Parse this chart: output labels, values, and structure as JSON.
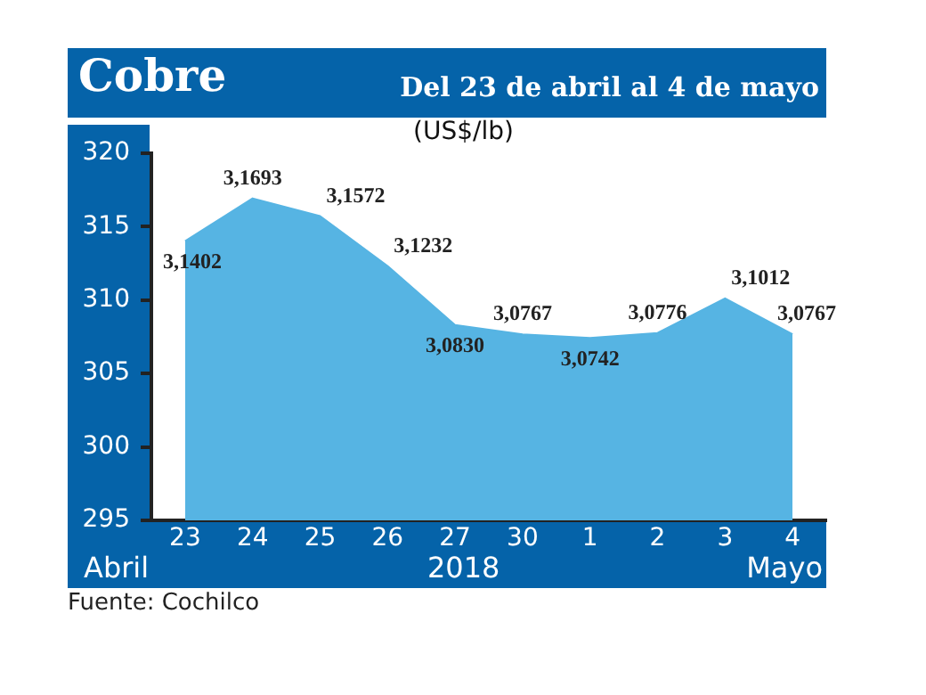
{
  "chart_data": {
    "type": "area",
    "title": "Cobre",
    "subtitle": "Del 23 de abril al 4 de mayo",
    "ylabel": "(US$/lb)",
    "categories": [
      "23",
      "24",
      "25",
      "26",
      "27",
      "30",
      "1",
      "2",
      "3",
      "4"
    ],
    "series": [
      {
        "color": "#56b4e3",
        "values": [
          314.02,
          316.93,
          315.72,
          312.32,
          308.3,
          307.67,
          307.42,
          307.76,
          310.12,
          307.67
        ],
        "value_labels": [
          "3,1402",
          "3,1693",
          "3,1572",
          "3,1232",
          "3,0830",
          "3,0767",
          "3,0742",
          "3,0776",
          "3,1012",
          "3,0767"
        ]
      }
    ],
    "ylim": [
      295,
      320
    ],
    "yticks": [
      295,
      300,
      305,
      310,
      315,
      320
    ],
    "grid": false,
    "legend": false,
    "marker": "none",
    "annotations": [
      "Abril",
      "2018",
      "Mayo",
      "Fuente: Cochilco"
    ]
  }
}
